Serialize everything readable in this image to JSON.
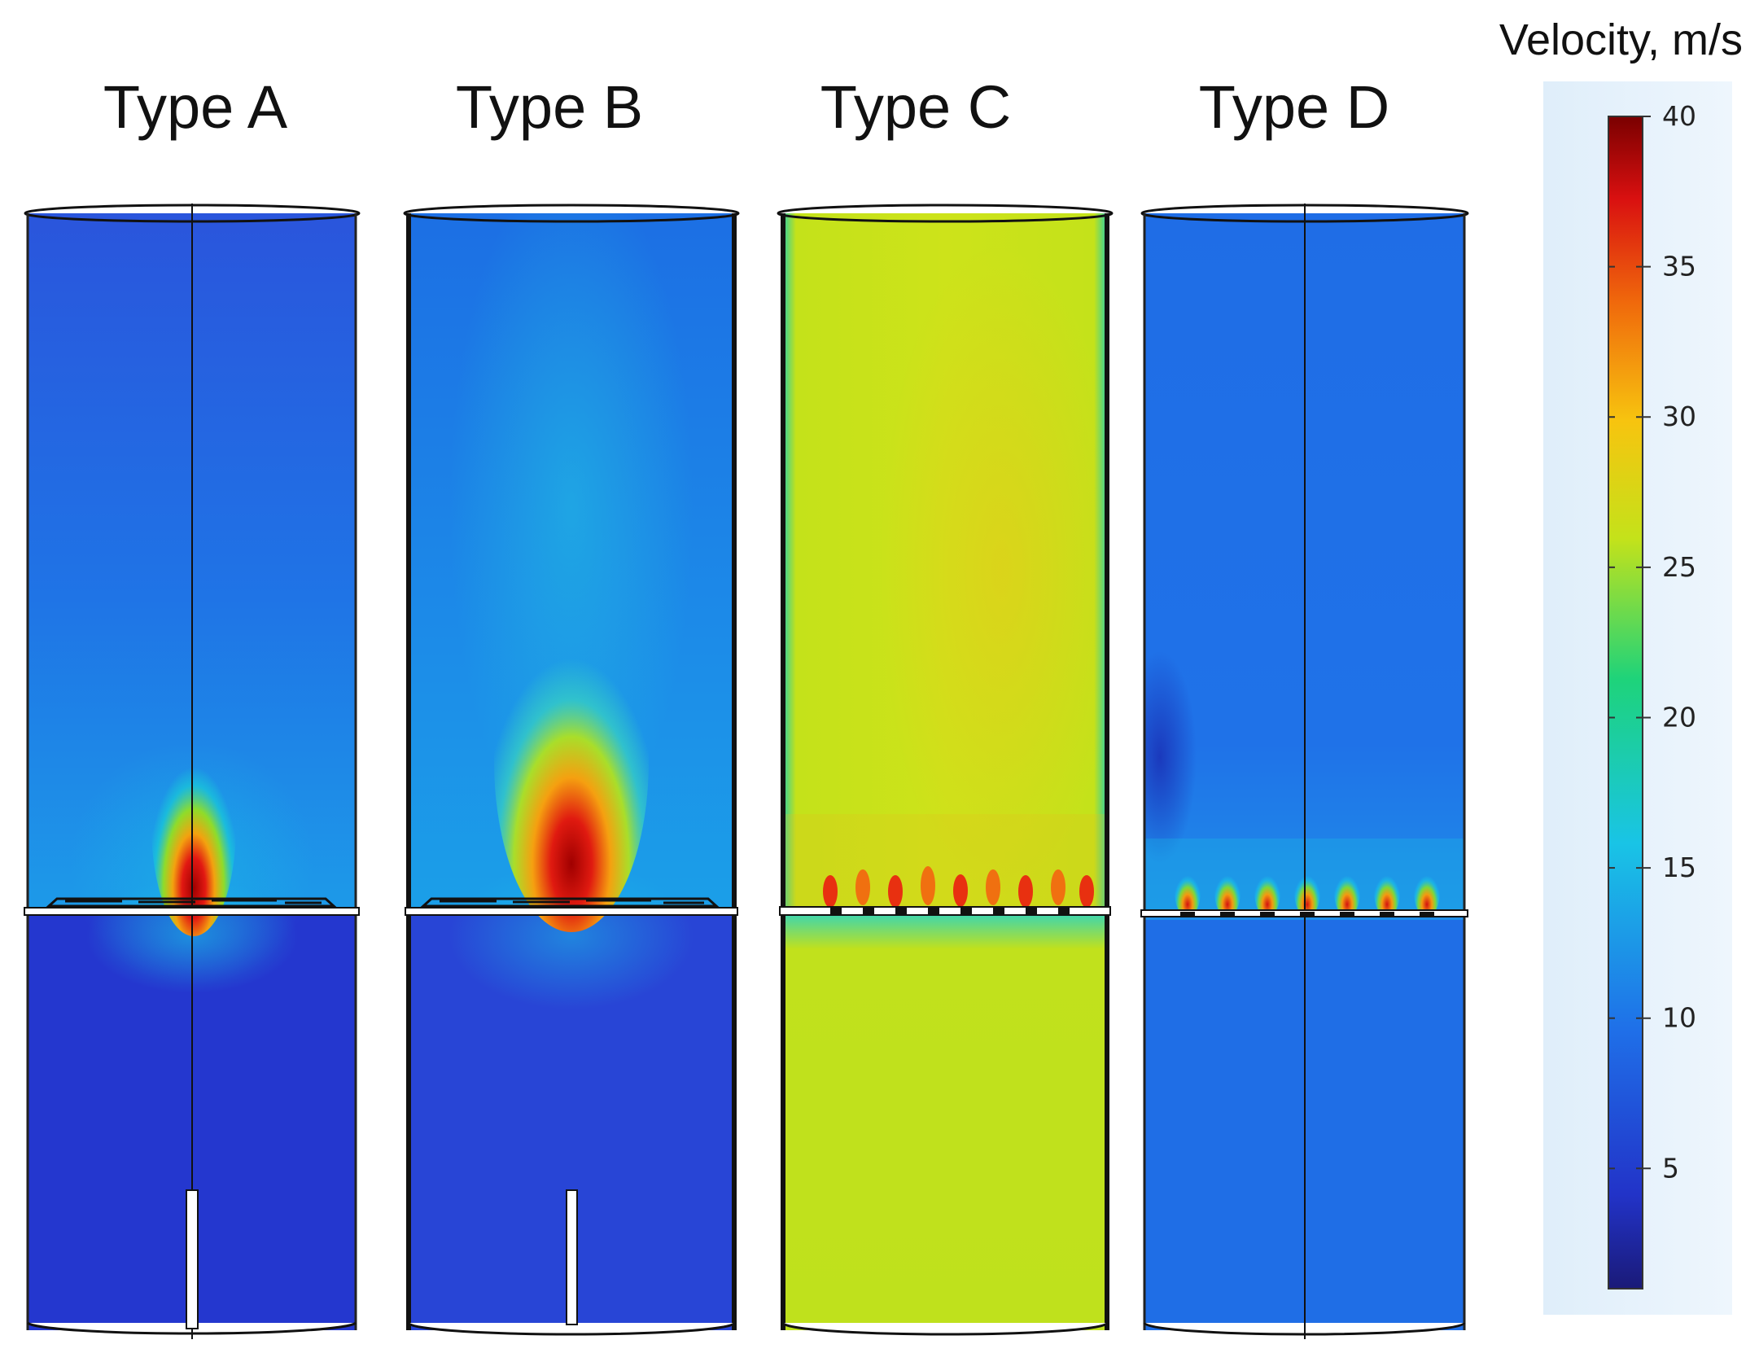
{
  "panels": [
    {
      "id": "a",
      "title": "Type A"
    },
    {
      "id": "b",
      "title": "Type B"
    },
    {
      "id": "c",
      "title": "Type C"
    },
    {
      "id": "d",
      "title": "Type D"
    }
  ],
  "colorbar": {
    "title": "Velocity, m/s",
    "ticks": [
      "40",
      "35",
      "30",
      "25",
      "20",
      "15",
      "10",
      "5"
    ],
    "min": 1,
    "max": 40
  },
  "colors": {
    "low": "#2233c8",
    "mid_low": "#1f6fe8",
    "cyan": "#19c4e6",
    "yellow_green": "#c4e21a",
    "red": "#e01a10",
    "dark_red": "#8e0000"
  }
}
